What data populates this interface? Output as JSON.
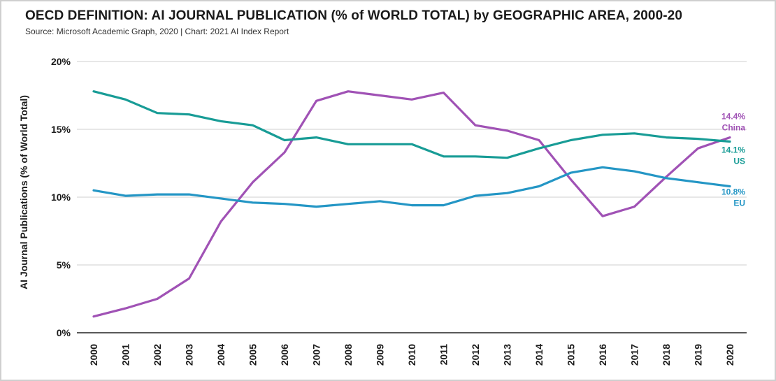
{
  "title": "OECD DEFINITION: AI JOURNAL PUBLICATION (% of WORLD TOTAL) by GEOGRAPHIC AREA, 2000-20",
  "subtitle": "Source: Microsoft Academic Graph, 2020 | Chart: 2021 AI Index Report",
  "chart_data": {
    "type": "line",
    "title": "OECD DEFINITION: AI JOURNAL PUBLICATION (% of WORLD TOTAL) by GEOGRAPHIC AREA, 2000-20",
    "xlabel": "",
    "ylabel": "AI Journal Publications (% of World Total)",
    "ylim": [
      0,
      20
    ],
    "yticks": [
      "0%",
      "5%",
      "10%",
      "15%",
      "20%"
    ],
    "ytick_values": [
      0,
      5,
      10,
      15,
      20
    ],
    "grid": true,
    "categories": [
      "2000",
      "2001",
      "2002",
      "2003",
      "2004",
      "2005",
      "2006",
      "2007",
      "2008",
      "2009",
      "2010",
      "2011",
      "2012",
      "2013",
      "2014",
      "2015",
      "2016",
      "2017",
      "2018",
      "2019",
      "2020"
    ],
    "series": [
      {
        "name": "China",
        "color": "#a052b5",
        "end_value_label": "14.4%",
        "values": [
          1.2,
          1.8,
          2.5,
          4.0,
          8.2,
          11.1,
          13.3,
          17.1,
          17.8,
          17.5,
          17.2,
          17.7,
          15.3,
          14.9,
          14.2,
          11.3,
          8.6,
          9.3,
          11.5,
          13.6,
          14.4
        ]
      },
      {
        "name": "US",
        "color": "#189c96",
        "end_value_label": "14.1%",
        "values": [
          17.8,
          17.2,
          16.2,
          16.1,
          15.6,
          15.3,
          14.2,
          14.4,
          13.9,
          13.9,
          13.9,
          13.0,
          13.0,
          12.9,
          13.6,
          14.2,
          14.6,
          14.7,
          14.4,
          14.3,
          14.1
        ]
      },
      {
        "name": "EU",
        "color": "#2496c5",
        "end_value_label": "10.8%",
        "values": [
          10.5,
          10.1,
          10.2,
          10.2,
          9.9,
          9.6,
          9.5,
          9.3,
          9.5,
          9.7,
          9.4,
          9.4,
          10.1,
          10.3,
          10.8,
          11.8,
          12.2,
          11.9,
          11.4,
          11.1,
          10.8
        ]
      }
    ]
  }
}
